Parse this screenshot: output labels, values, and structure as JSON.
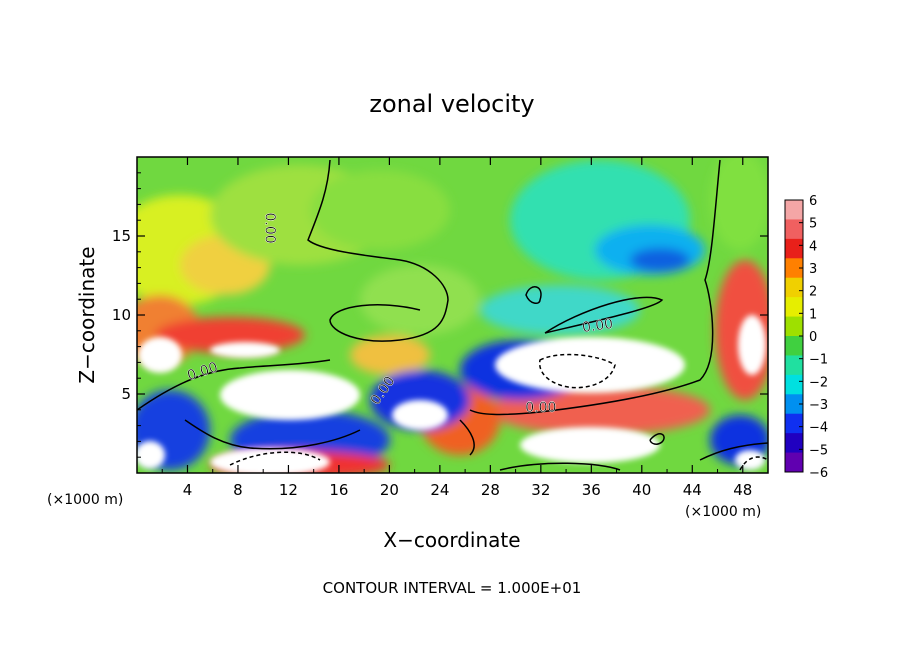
{
  "chart_data": {
    "type": "heatmap",
    "title": "zonal velocity",
    "xlabel": "X−coordinate",
    "ylabel": "Z−coordinate",
    "x_unit_left": "(×1000 m)",
    "x_unit_right": "(×1000 m)",
    "xlim": [
      0,
      50
    ],
    "ylim": [
      0,
      20
    ],
    "x_ticks": [
      4,
      8,
      12,
      16,
      20,
      24,
      28,
      32,
      36,
      40,
      44,
      48
    ],
    "x_tick_labels": [
      "4",
      "8",
      "12",
      "16",
      "20",
      "24",
      "28",
      "32",
      "36",
      "40",
      "44",
      "48"
    ],
    "y_ticks": [
      5,
      10,
      15
    ],
    "y_tick_labels": [
      "5",
      "10",
      "15"
    ],
    "colorbar": {
      "min": -6,
      "max": 6,
      "tick_values": [
        6,
        5,
        4,
        3,
        2,
        1,
        0,
        -1,
        -2,
        -3,
        -4,
        -5,
        -6
      ],
      "tick_labels": [
        "6",
        "5",
        "4",
        "3",
        "2",
        "1",
        "0",
        "−1",
        "−2",
        "−3",
        "−4",
        "−5",
        "−6"
      ],
      "colors": [
        "#f4a6a6",
        "#f06060",
        "#e8201a",
        "#ff8000",
        "#f0d000",
        "#e6ee00",
        "#9ee000",
        "#40d040",
        "#20e0a0",
        "#00e0e0",
        "#0090f0",
        "#1030f0",
        "#2000c0",
        "#6000b0"
      ]
    },
    "contour_labels": [
      {
        "text": "0.00",
        "x": 10.5,
        "y": 15.5,
        "angle": 90
      },
      {
        "text": "0.00",
        "x": 5.2,
        "y": 6.4,
        "angle": -18
      },
      {
        "text": "0.00",
        "x": 19.5,
        "y": 5.2,
        "angle": -55
      },
      {
        "text": "0.00",
        "x": 32.0,
        "y": 4.1,
        "angle": 0
      },
      {
        "text": "0.00",
        "x": 36.5,
        "y": 9.3,
        "angle": -8
      }
    ],
    "contour_interval_text": "CONTOUR INTERVAL =  1.000E+01"
  }
}
